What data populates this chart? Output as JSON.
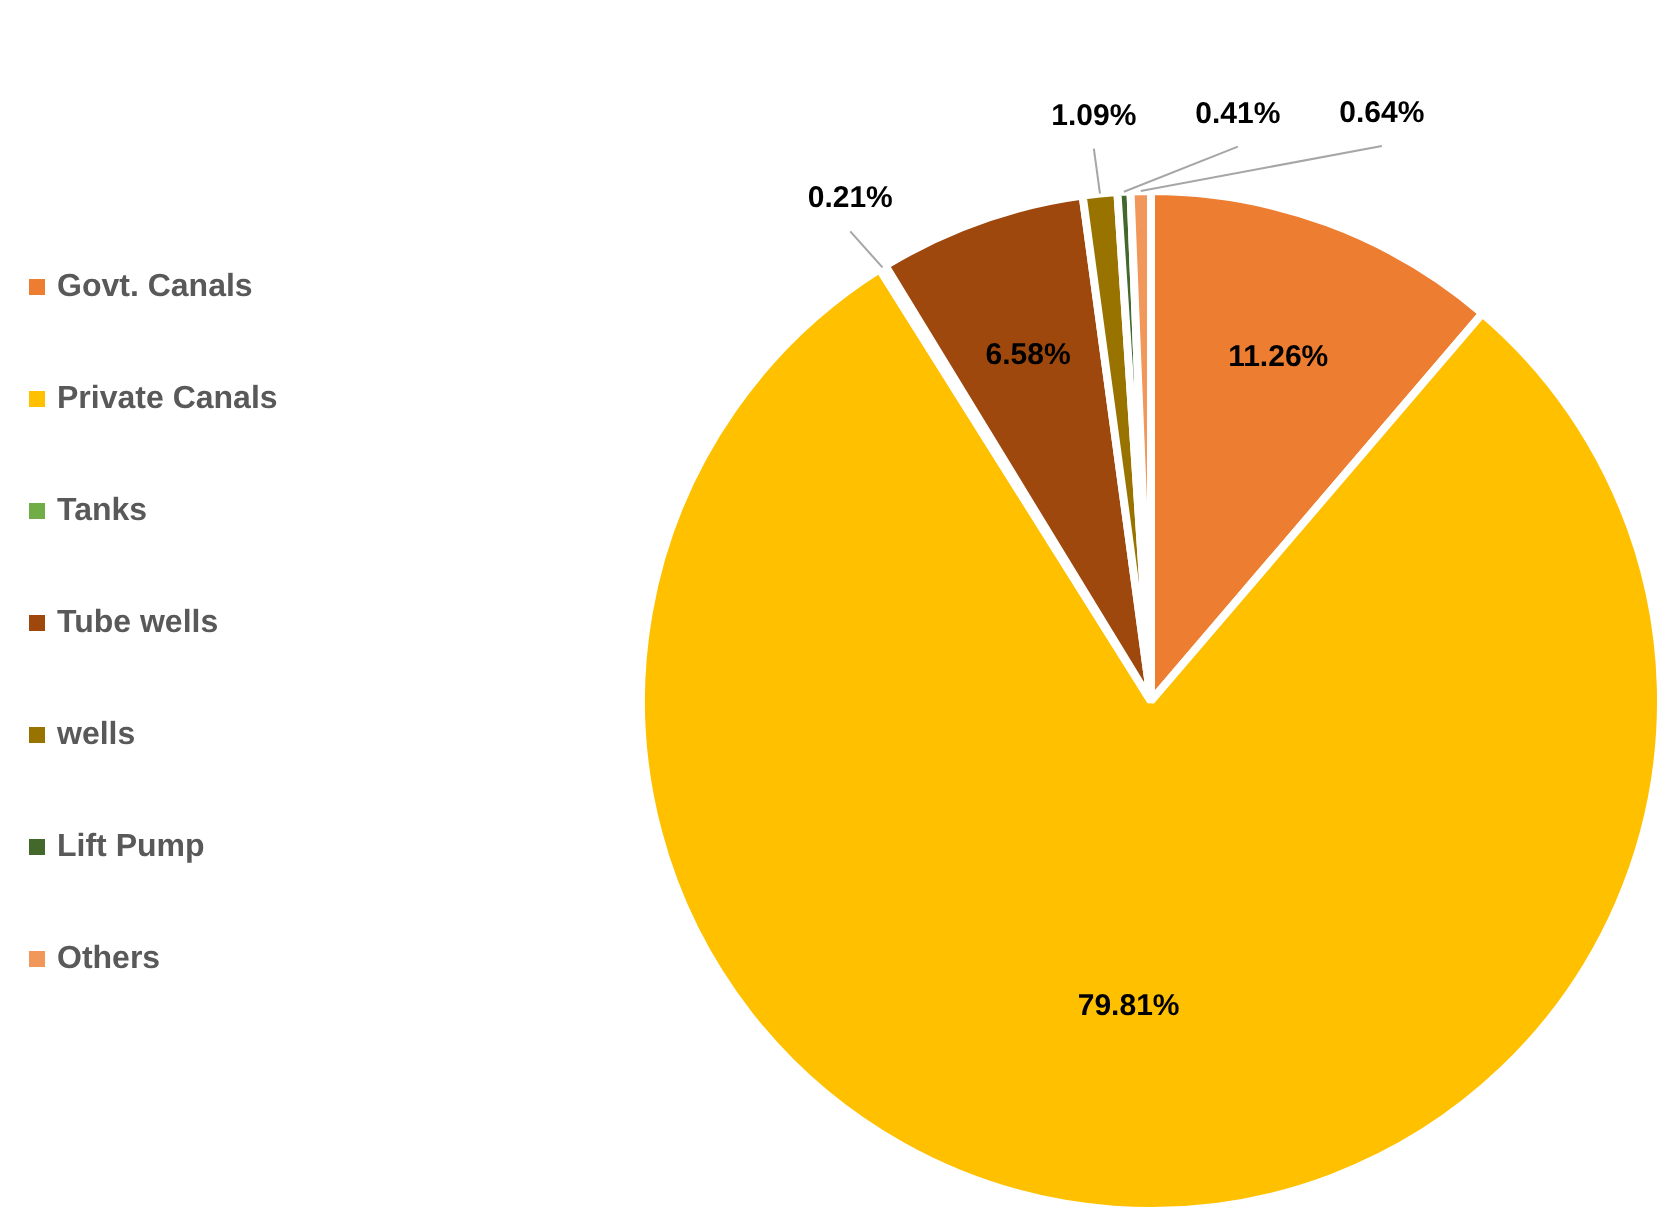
{
  "chart_data": {
    "type": "pie",
    "categories": [
      "Govt. Canals",
      "Private Canals",
      "Tanks",
      "Tube wells",
      "wells",
      "Lift Pump",
      "Others"
    ],
    "values": [
      11.26,
      79.81,
      0.21,
      6.58,
      1.09,
      0.41,
      0.64
    ],
    "colors": [
      "#ed7d31",
      "#ffc000",
      "#70ad47",
      "#9e480e",
      "#997300",
      "#43682b",
      "#f1975a"
    ],
    "value_labels": [
      "11.26%",
      "79.81%",
      "0.21%",
      "6.58%",
      "1.09%",
      "0.41%",
      "0.64%"
    ],
    "legend": "left"
  }
}
